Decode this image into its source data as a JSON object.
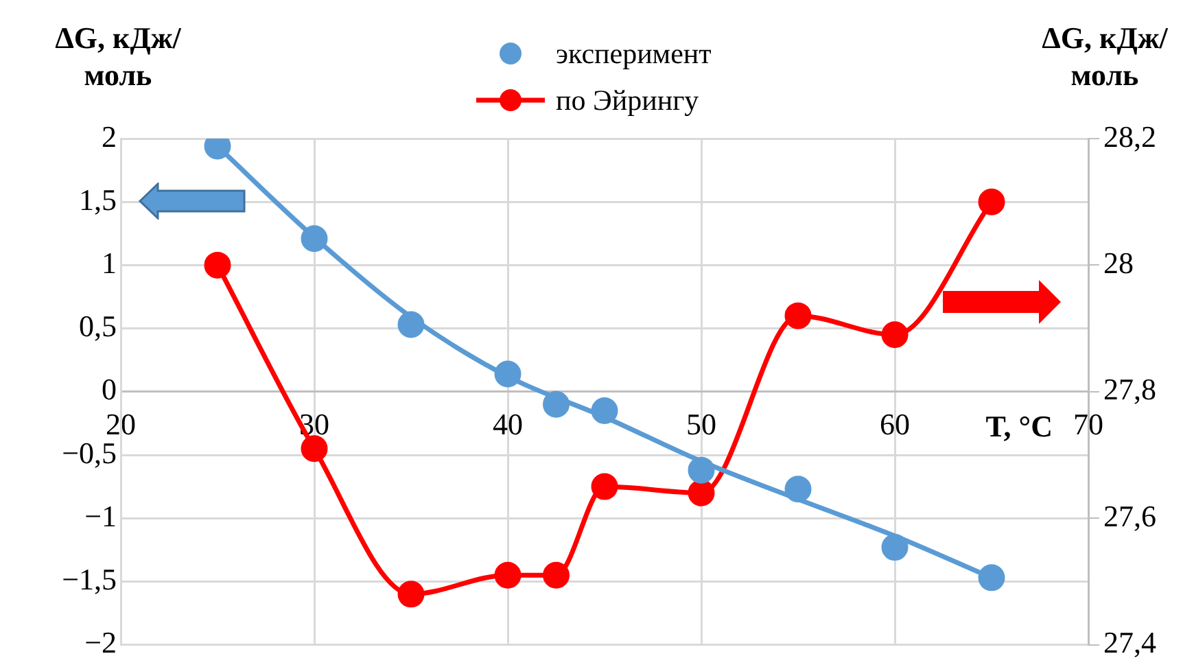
{
  "chart_data": {
    "type": "scatter",
    "xlabel": "T, °C",
    "ylabel": "ΔG, кДж/моль",
    "y2label": "ΔG, кДж/моль",
    "xlim": [
      20,
      70
    ],
    "xticks": [
      20,
      30,
      40,
      50,
      60,
      70
    ],
    "ylim": [
      -2,
      2
    ],
    "yticks": [
      {
        "value": -2,
        "label": "−2"
      },
      {
        "value": -1.5,
        "label": "−1,5"
      },
      {
        "value": -1,
        "label": "−1"
      },
      {
        "value": -0.5,
        "label": "−0,5"
      },
      0,
      {
        "value": 0.5,
        "label": "0,5"
      },
      1,
      {
        "value": 1.5,
        "label": "1,5"
      },
      2
    ],
    "y2lim": [
      27.4,
      28.2
    ],
    "y2ticks": [
      {
        "value": 27.4,
        "label": "27,4"
      },
      {
        "value": 27.6,
        "label": "27,6"
      },
      {
        "value": 27.8,
        "label": "27,8"
      },
      28,
      {
        "value": 28.2,
        "label": "28,2"
      }
    ],
    "grid": true,
    "legend": "top",
    "marker": "circle",
    "line_style": "solid",
    "series": [
      {
        "name": "эксперимент",
        "color": "#5b9bd5",
        "x": [
          25,
          30,
          35,
          40,
          42.5,
          45,
          50,
          55,
          60,
          65
        ],
        "values": [
          1.94,
          1.21,
          0.53,
          0.14,
          -0.1,
          -0.15,
          -0.62,
          -0.77,
          -1.23,
          -1.47
        ]
      },
      {
        "type": "line",
        "color": "#5b9bd5",
        "marker": "none",
        "x": [
          25,
          30,
          35,
          40,
          45,
          50,
          55,
          60,
          65
        ],
        "values": [
          1.94,
          1.22,
          0.59,
          0.12,
          -0.2,
          -0.55,
          -0.85,
          -1.14,
          -1.47
        ]
      },
      {
        "name": "по Эйрингу",
        "type": "line",
        "axis": "y2",
        "color": "#ff0000",
        "x": [
          25,
          30,
          35,
          40,
          42.5,
          45,
          50,
          55,
          60,
          65
        ],
        "values": [
          28.0,
          27.71,
          27.48,
          27.51,
          27.51,
          27.65,
          27.64,
          27.92,
          27.89,
          28.1
        ]
      }
    ]
  }
}
